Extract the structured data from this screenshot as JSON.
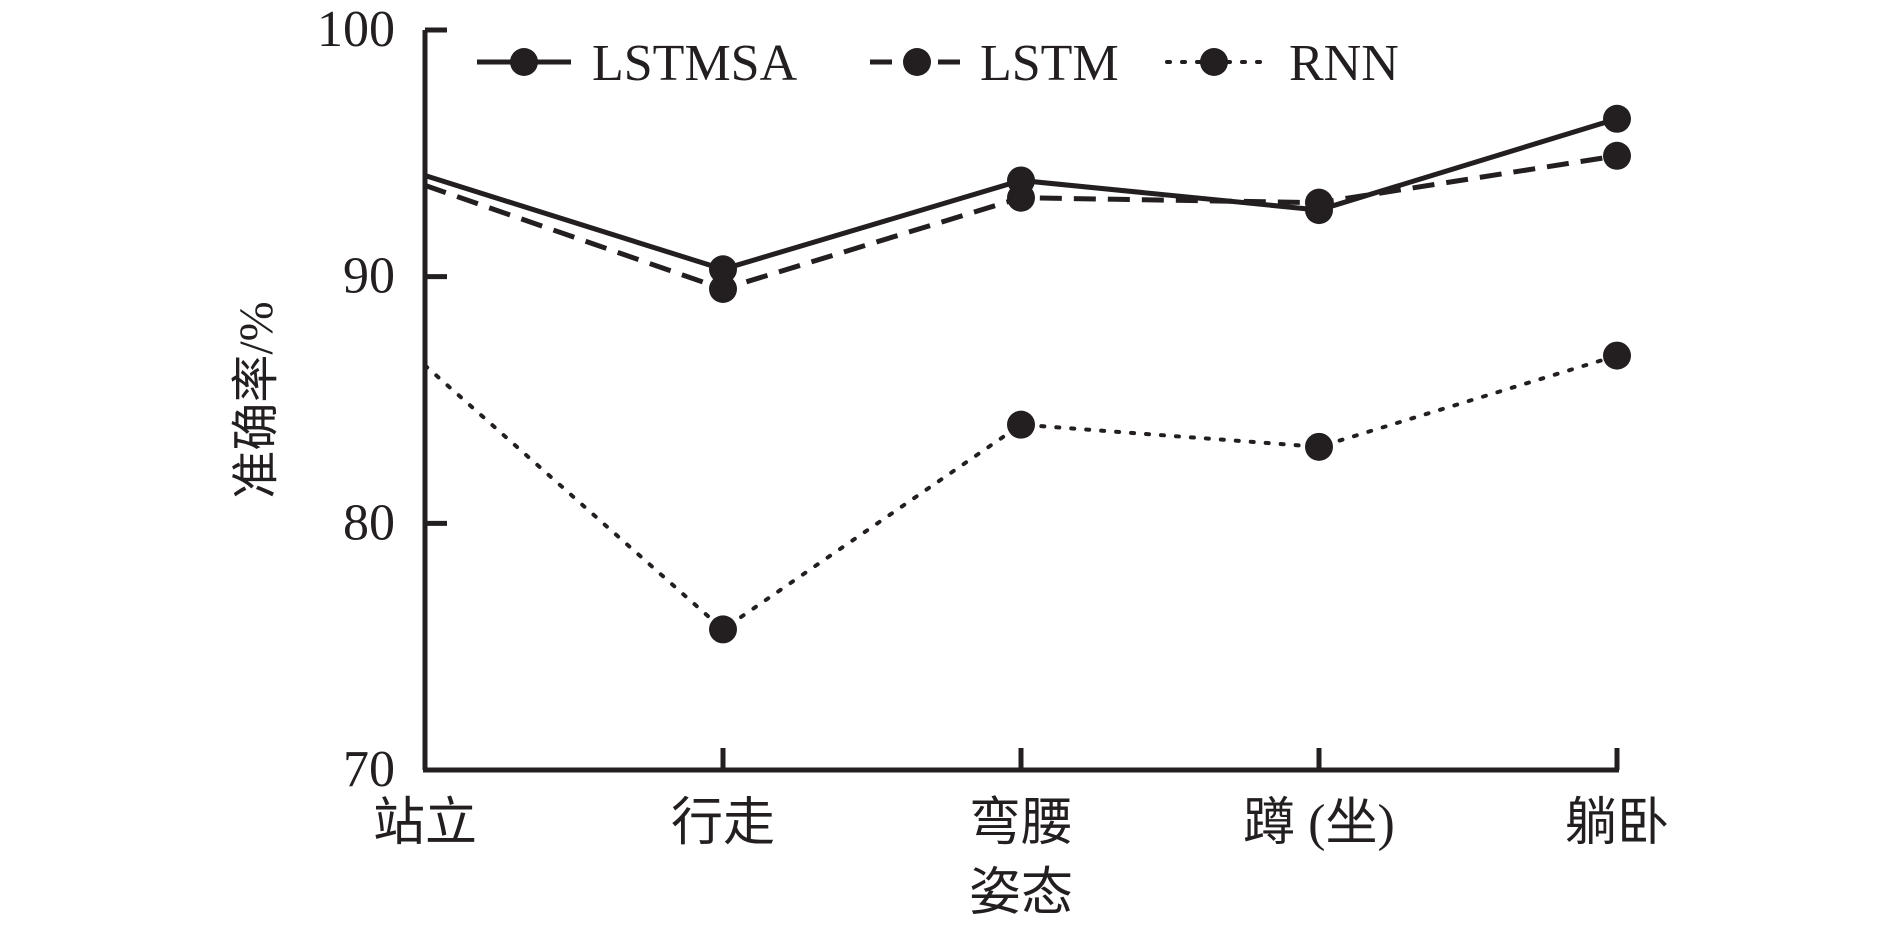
{
  "chart_data": {
    "type": "line",
    "title": "",
    "xlabel": "",
    "ylabel": "准确率/%",
    "ylim": [
      70,
      100
    ],
    "yticks": [
      70,
      80,
      90,
      100
    ],
    "categories": [
      "站立",
      "行走",
      "弯腰\n姿态",
      "蹲 (坐)",
      "躺卧"
    ],
    "legend_position": "top",
    "grid": false,
    "series": [
      {
        "name": "LSTMSA",
        "style": "solid",
        "color": "#231f20",
        "values": [
          94.1,
          90.3,
          93.9,
          92.7,
          96.4
        ]
      },
      {
        "name": "LSTM",
        "style": "dashed",
        "color": "#231f20",
        "values": [
          93.7,
          89.5,
          93.2,
          93.0,
          94.9
        ]
      },
      {
        "name": "RNN",
        "style": "dotted",
        "color": "#231f20",
        "values": [
          86.4,
          75.7,
          84.0,
          83.1,
          86.8
        ]
      }
    ]
  }
}
